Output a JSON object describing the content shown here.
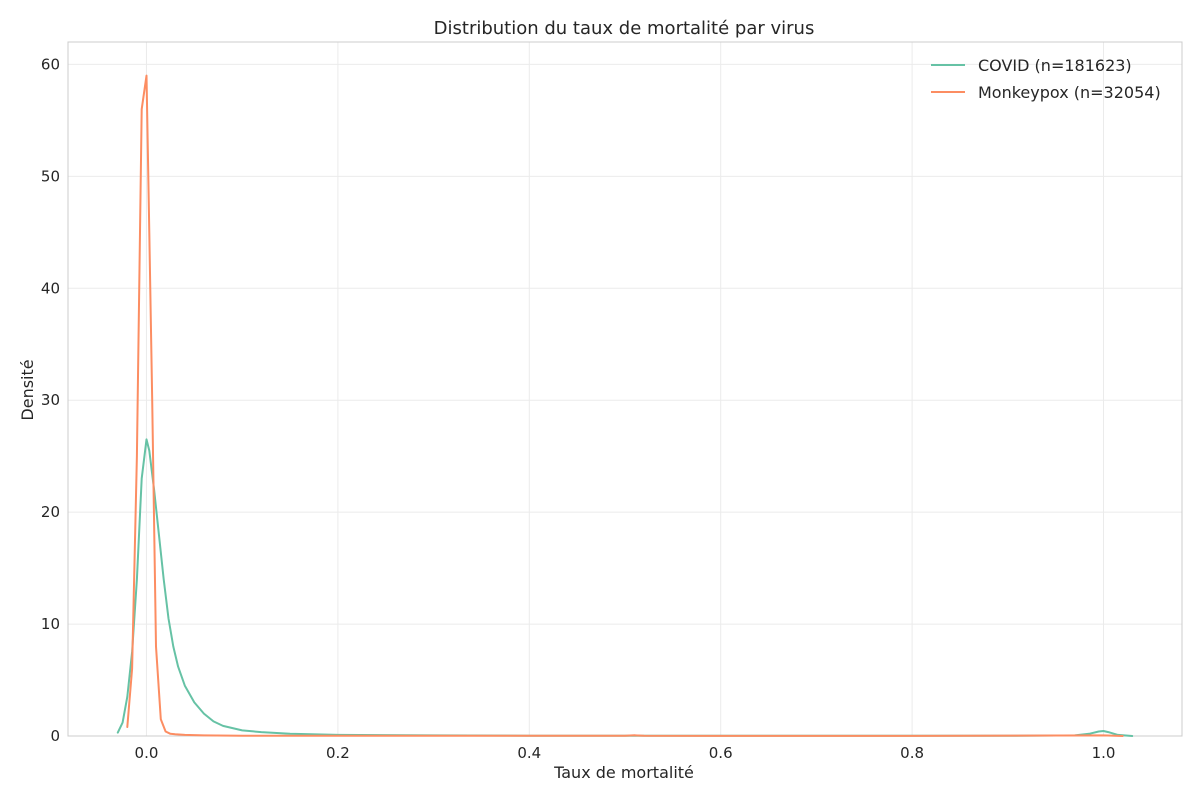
{
  "chart_data": {
    "type": "line",
    "title": "Distribution du taux de mortalité par virus",
    "xlabel": "Taux de mortalité",
    "ylabel": "Densité",
    "xlim": [
      -0.082,
      1.082
    ],
    "ylim": [
      0,
      62
    ],
    "xticks": [
      0.0,
      0.2,
      0.4,
      0.6,
      0.8,
      1.0
    ],
    "xtick_labels": [
      "0.0",
      "0.2",
      "0.4",
      "0.6",
      "0.8",
      "1.0"
    ],
    "yticks": [
      0,
      10,
      20,
      30,
      40,
      50,
      60
    ],
    "ytick_labels": [
      "0",
      "10",
      "20",
      "30",
      "40",
      "50",
      "60"
    ],
    "grid": true,
    "legend_position": "top-right",
    "series": [
      {
        "name": "COVID (n=181623)",
        "color": "#66c2a5",
        "x": [
          -0.03,
          -0.025,
          -0.02,
          -0.015,
          -0.01,
          -0.005,
          0.0,
          0.003,
          0.008,
          0.013,
          0.018,
          0.023,
          0.028,
          0.033,
          0.04,
          0.05,
          0.06,
          0.07,
          0.08,
          0.1,
          0.12,
          0.15,
          0.2,
          0.3,
          0.4,
          0.5,
          0.6,
          0.7,
          0.8,
          0.9,
          0.97,
          0.985,
          0.995,
          1.0,
          1.005,
          1.015,
          1.03
        ],
        "y": [
          0.3,
          1.2,
          3.5,
          7.5,
          14.0,
          23.0,
          26.5,
          25.5,
          22.0,
          18.0,
          14.0,
          10.5,
          8.0,
          6.2,
          4.5,
          3.0,
          2.0,
          1.3,
          0.9,
          0.5,
          0.35,
          0.2,
          0.1,
          0.05,
          0.03,
          0.02,
          0.02,
          0.02,
          0.02,
          0.02,
          0.05,
          0.2,
          0.4,
          0.45,
          0.35,
          0.1,
          0.0
        ]
      },
      {
        "name": "Monkeypox (n=32054)",
        "color": "#fc8d62",
        "x": [
          -0.02,
          -0.015,
          -0.01,
          -0.005,
          0.0,
          0.003,
          0.006,
          0.01,
          0.015,
          0.02,
          0.025,
          0.03,
          0.04,
          0.06,
          0.1,
          0.2,
          0.3,
          0.4,
          0.5,
          0.51,
          0.52,
          0.6,
          0.8,
          1.0,
          1.02
        ],
        "y": [
          0.8,
          6.0,
          25.0,
          56.0,
          59.0,
          45.0,
          30.0,
          8.0,
          1.5,
          0.4,
          0.2,
          0.15,
          0.1,
          0.05,
          0.03,
          0.02,
          0.02,
          0.02,
          0.02,
          0.06,
          0.02,
          0.01,
          0.01,
          0.05,
          0.0
        ]
      }
    ]
  }
}
